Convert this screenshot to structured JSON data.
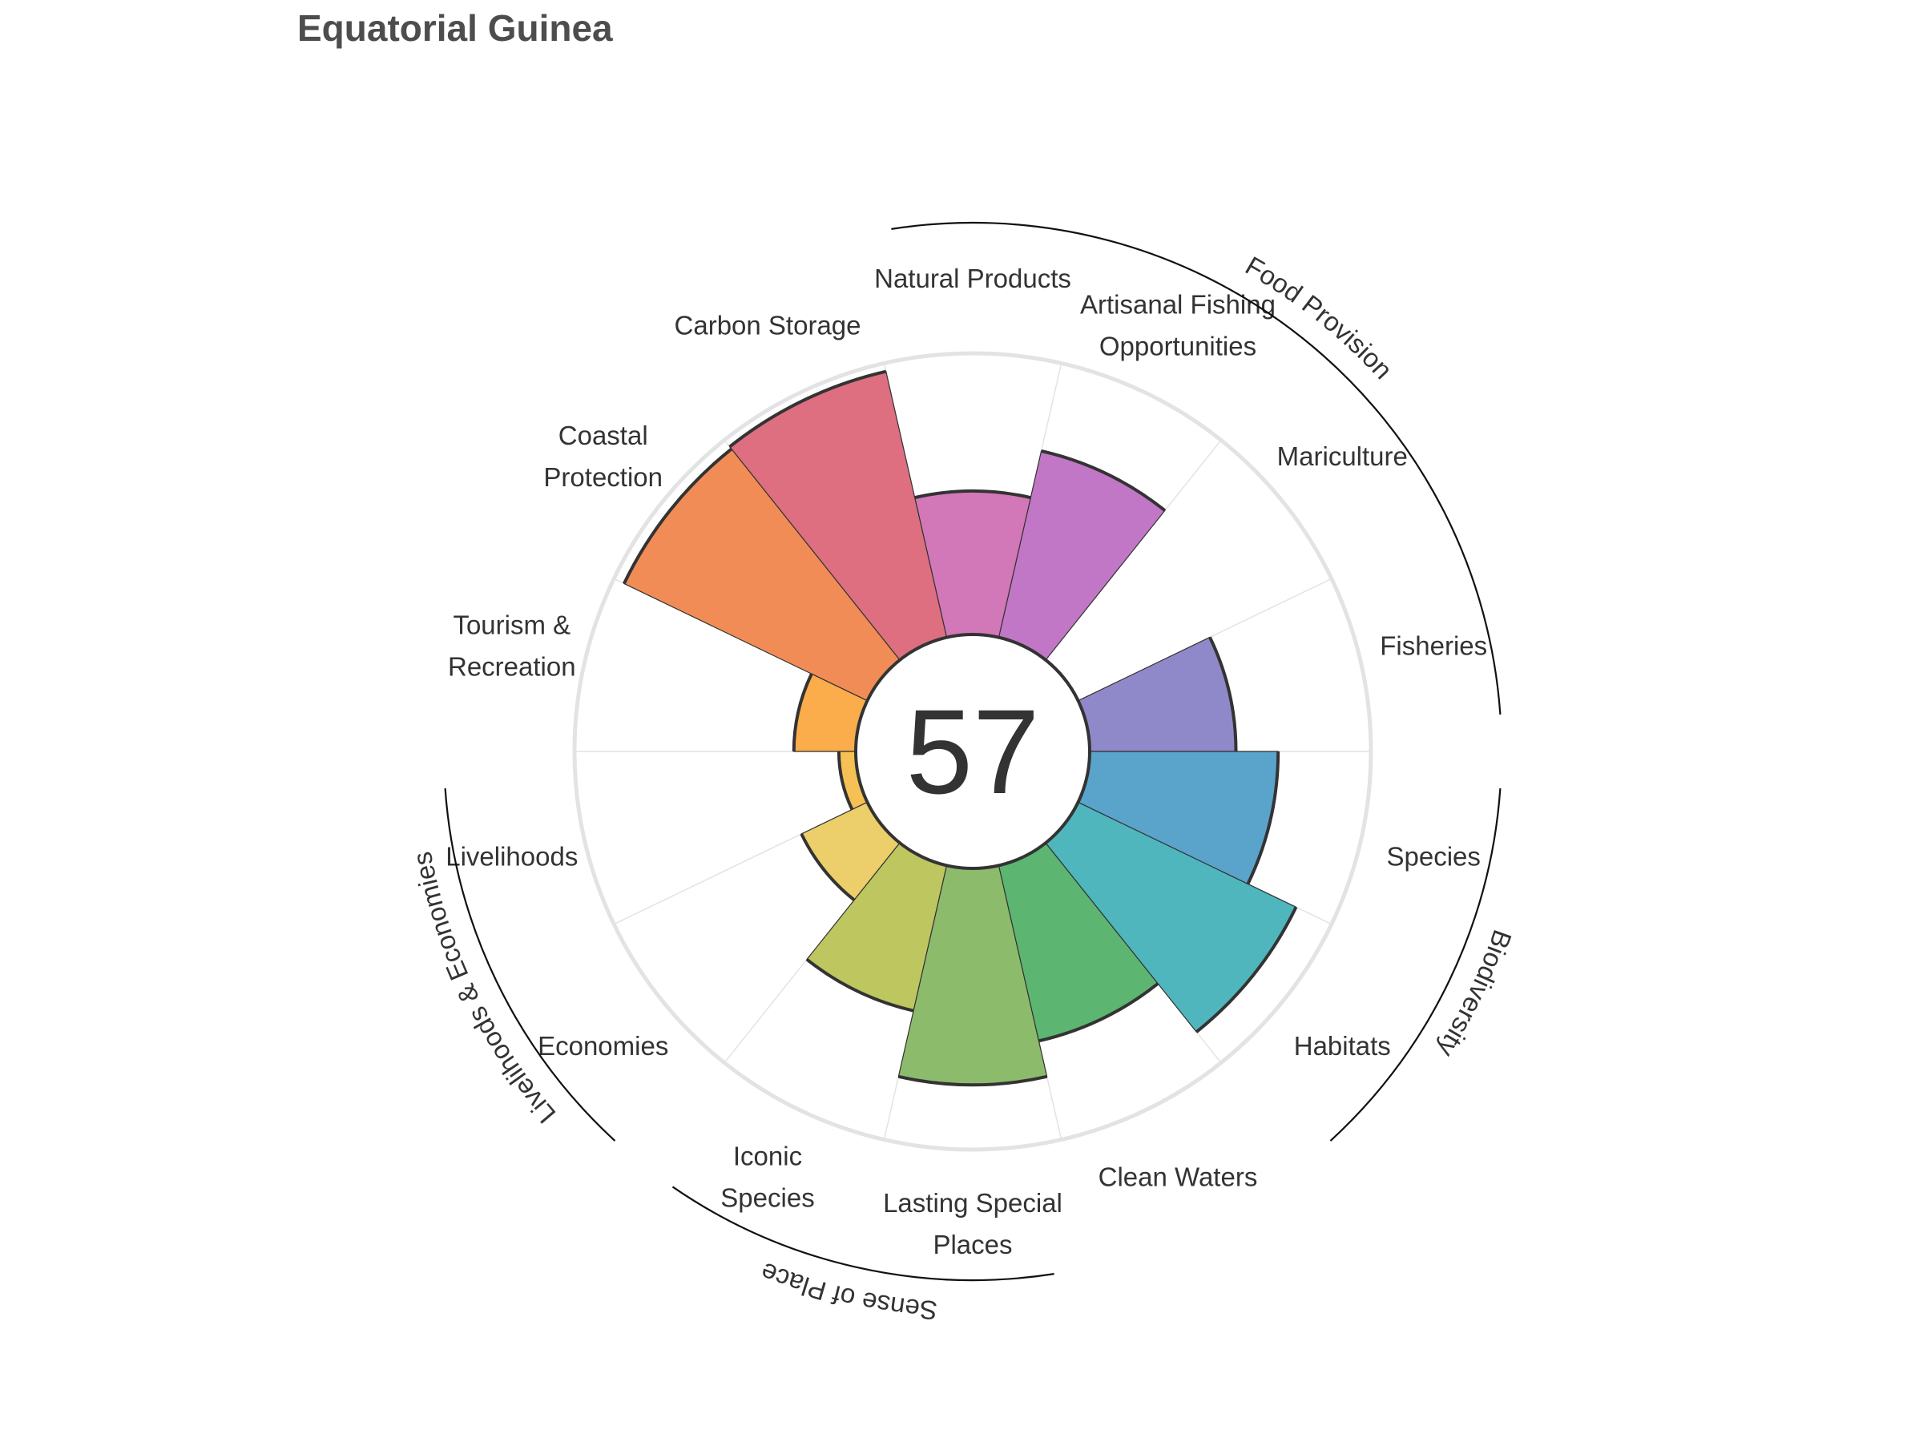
{
  "chart_data": {
    "type": "polar-bar",
    "title": "Equatorial Guinea",
    "center_score": "57",
    "rlim": [
      0,
      100
    ],
    "grid": true,
    "goals": [
      {
        "key": "fisheries",
        "label": [
          "Fisheries"
        ],
        "value": 52,
        "color": "#9089c9"
      },
      {
        "key": "mariculture",
        "label": [
          "Mariculture"
        ],
        "value": 0,
        "color": "#a383c7"
      },
      {
        "key": "artisanal",
        "label": [
          "Artisanal Fishing",
          "Opportunities"
        ],
        "value": 68,
        "color": "#c276c6"
      },
      {
        "key": "natural_products",
        "label": [
          "Natural Products"
        ],
        "value": 51,
        "color": "#d277b7"
      },
      {
        "key": "carbon_storage",
        "label": [
          "Carbon Storage"
        ],
        "value": 97,
        "color": "#dd6f80"
      },
      {
        "key": "coastal_protection",
        "label": [
          "Coastal",
          "Protection"
        ],
        "value": 96,
        "color": "#f28c56"
      },
      {
        "key": "tourism",
        "label": [
          "Tourism &",
          "Recreation"
        ],
        "value": 22,
        "color": "#fbad4b"
      },
      {
        "key": "livelihoods",
        "label": [
          "Livelihoods"
        ],
        "value": 6,
        "color": "#f6c154"
      },
      {
        "key": "economies",
        "label": [
          "Economies"
        ],
        "value": 26,
        "color": "#ecce6a"
      },
      {
        "key": "iconic_species",
        "label": [
          "Iconic",
          "Species"
        ],
        "value": 53,
        "color": "#bec660"
      },
      {
        "key": "lasting_special_places",
        "label": [
          "Lasting Special",
          "Places"
        ],
        "value": 77,
        "color": "#8dbb6c"
      },
      {
        "key": "clean_waters",
        "label": [
          "Clean Waters"
        ],
        "value": 64,
        "color": "#5cb672"
      },
      {
        "key": "habitats",
        "label": [
          "Habitats"
        ],
        "value": 86,
        "color": "#4fb6be"
      },
      {
        "key": "species",
        "label": [
          "Species"
        ],
        "value": 67,
        "color": "#5aa3cb"
      }
    ],
    "groups": [
      {
        "label": "Food Provision"
      },
      {
        "label": "Biodiversity"
      },
      {
        "label": "Sense of Place"
      },
      {
        "label": "Livelihoods & Economies"
      }
    ]
  }
}
